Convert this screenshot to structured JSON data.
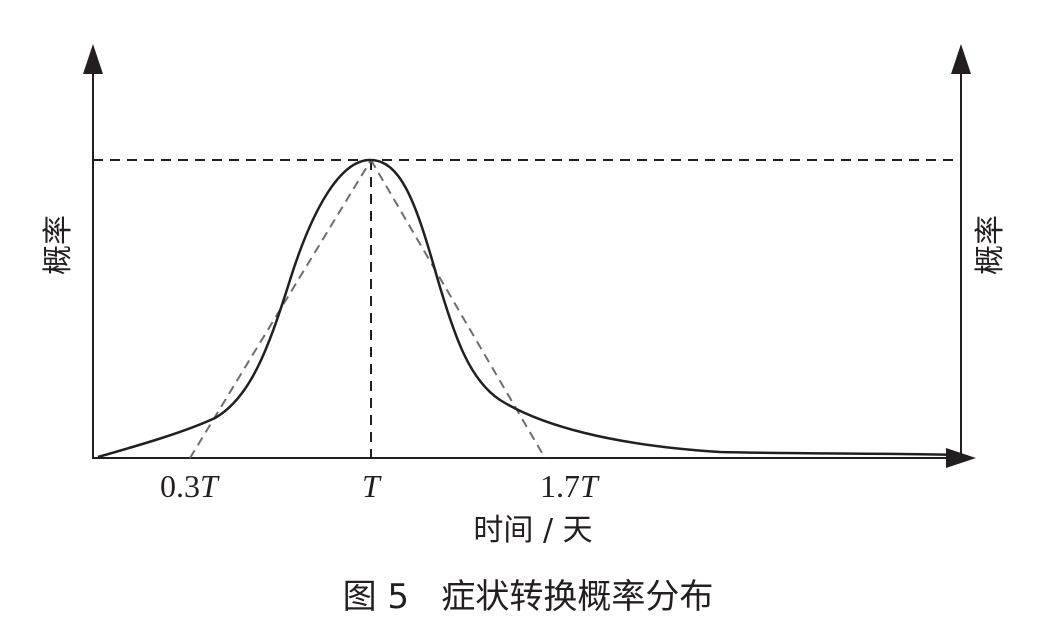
{
  "figure": {
    "caption": "图 5   症状转换概率分布",
    "left_axis_label": "概率",
    "right_axis_label": "概率",
    "x_axis_label": "时间 / 天",
    "ticks": [
      {
        "value": "0.3",
        "suffix": "T"
      },
      {
        "value": "",
        "suffix": "T"
      },
      {
        "value": "1.7",
        "suffix": "T"
      }
    ]
  },
  "colors": {
    "ink": "#231f20",
    "dashed_gray": "#6d6e71"
  }
}
